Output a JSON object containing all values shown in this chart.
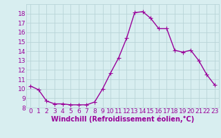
{
  "x": [
    0,
    1,
    2,
    3,
    4,
    5,
    6,
    7,
    8,
    9,
    10,
    11,
    12,
    13,
    14,
    15,
    16,
    17,
    18,
    19,
    20,
    21,
    22,
    23
  ],
  "y": [
    10.3,
    9.9,
    8.7,
    8.4,
    8.4,
    8.3,
    8.3,
    8.3,
    8.6,
    10.0,
    11.7,
    13.3,
    15.4,
    18.1,
    18.2,
    17.5,
    16.4,
    16.4,
    14.1,
    13.9,
    14.1,
    13.0,
    11.5,
    10.4
  ],
  "line_color": "#990099",
  "marker_color": "#990099",
  "bg_color": "#d8eef0",
  "grid_color": "#b8d4d8",
  "xlabel": "Windchill (Refroidissement éolien,°C)",
  "xlabel_color": "#990099",
  "tick_color": "#990099",
  "ylim": [
    8,
    19
  ],
  "xlim": [
    -0.5,
    23.5
  ],
  "yticks": [
    8,
    9,
    10,
    11,
    12,
    13,
    14,
    15,
    16,
    17,
    18
  ],
  "xticks": [
    0,
    1,
    2,
    3,
    4,
    5,
    6,
    7,
    8,
    9,
    10,
    11,
    12,
    13,
    14,
    15,
    16,
    17,
    18,
    19,
    20,
    21,
    22,
    23
  ],
  "marker_size": 2.5,
  "line_width": 1.0,
  "font_size": 6.5
}
